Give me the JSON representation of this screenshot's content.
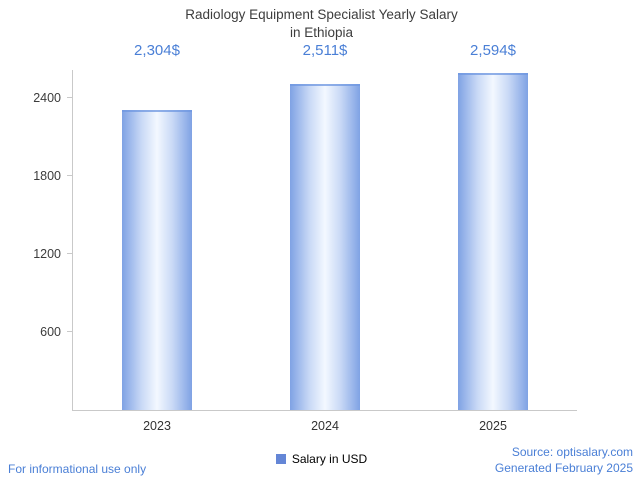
{
  "title": {
    "line1": "Radiology Equipment Specialist Yearly Salary",
    "line2": "in Ethiopia"
  },
  "chart_data": {
    "type": "bar",
    "categories": [
      "2023",
      "2024",
      "2025"
    ],
    "values": [
      2304,
      2511,
      2594
    ],
    "value_labels": [
      "2,304$",
      "2,511$",
      "2,594$"
    ],
    "series_name": "Salary in USD",
    "y_ticks": [
      600,
      1200,
      1800,
      2400
    ],
    "ylim": [
      0,
      2615
    ],
    "grid": false,
    "legend_position": "bottom",
    "bar_edge_color": "#7fa2e4",
    "bar_center_color": "#f3f8ff",
    "value_label_color": "#4a7fd6",
    "title": "Radiology Equipment Specialist Yearly Salary in Ethiopia",
    "xlabel": "",
    "ylabel": ""
  },
  "legend": {
    "label": "Salary in USD",
    "swatch_color": "#6486d6"
  },
  "footer": {
    "left": "For informational use only",
    "source": "Source: optisalary.com",
    "generated": "Generated February 2025"
  },
  "colors": {
    "accent_blue": "#4a7fd6",
    "axis_gray": "#c9c9c9",
    "title_gray": "#3d3d3d"
  }
}
